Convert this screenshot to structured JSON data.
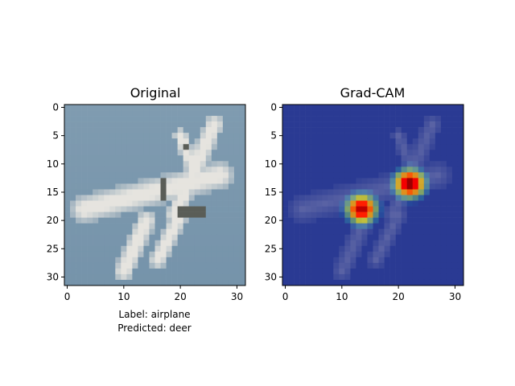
{
  "chart_data": [
    {
      "type": "heatmap",
      "title": "Original",
      "image_size": [
        32,
        32
      ],
      "x_ticks": [
        0,
        10,
        20,
        30
      ],
      "y_ticks": [
        0,
        5,
        10,
        15,
        20,
        25,
        30
      ],
      "xlim": [
        -0.5,
        31.5
      ],
      "ylim": [
        31.5,
        -0.5
      ],
      "content": "pixelated CIFAR-10 photo: white/grey fighter jet on blue-grey sky",
      "colors": {
        "sky": "#7f9bb0",
        "plane": "#e6e4df",
        "shadow": "#5a5d57"
      },
      "caption": [
        "Label: airplane",
        "Predicted: deer"
      ]
    },
    {
      "type": "heatmap",
      "title": "Grad-CAM",
      "image_size": [
        32,
        32
      ],
      "x_ticks": [
        0,
        10,
        20,
        30
      ],
      "y_ticks": [
        0,
        5,
        10,
        15,
        20,
        25,
        30
      ],
      "xlim": [
        -0.5,
        31.5
      ],
      "ylim": [
        31.5,
        -0.5
      ],
      "colormap": "jet",
      "hotspots": [
        {
          "x": 22,
          "y": 13.5,
          "peak": 1.0
        },
        {
          "x": 13.5,
          "y": 18,
          "peak": 0.95
        }
      ],
      "colors": {
        "low": "#2a3a93",
        "high": "#e0413a"
      }
    }
  ]
}
